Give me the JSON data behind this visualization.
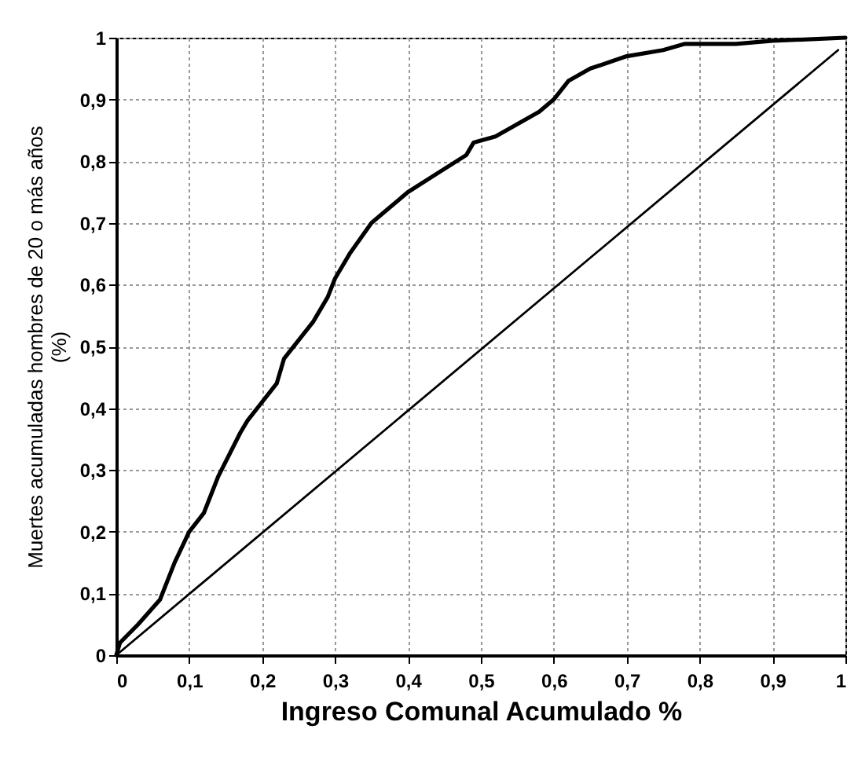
{
  "chart_data": {
    "type": "line",
    "xlabel": "Ingreso Comunal Acumulado %",
    "ylabel": "Muertes acumuladas hombres de 20 o más años (%)",
    "xlim": [
      0,
      1
    ],
    "ylim": [
      0,
      1
    ],
    "xticks": [
      0,
      {
        "value": 0.1,
        "label": "0,1"
      },
      {
        "value": 0.2,
        "label": "0,2"
      },
      {
        "value": 0.3,
        "label": "0,3"
      },
      {
        "value": 0.4,
        "label": "0,4"
      },
      {
        "value": 0.5,
        "label": "0,5"
      },
      {
        "value": 0.6,
        "label": "0,6"
      },
      {
        "value": 0.7,
        "label": "0,7"
      },
      {
        "value": 0.8,
        "label": "0,8"
      },
      {
        "value": 0.9,
        "label": "0,9"
      },
      1
    ],
    "yticks": [
      0,
      {
        "value": 0.1,
        "label": "0,1"
      },
      {
        "value": 0.2,
        "label": "0,2"
      },
      {
        "value": 0.3,
        "label": "0,3"
      },
      {
        "value": 0.4,
        "label": "0,4"
      },
      {
        "value": 0.5,
        "label": "0,5"
      },
      {
        "value": 0.6,
        "label": "0,6"
      },
      {
        "value": 0.7,
        "label": "0,7"
      },
      {
        "value": 0.8,
        "label": "0,8"
      },
      {
        "value": 0.9,
        "label": "0,9"
      },
      1
    ],
    "grid": true,
    "line_style": "solid",
    "marker": "none",
    "series": [
      {
        "color": "#000000",
        "x": [
          0,
          0.005,
          0.03,
          0.06,
          0.08,
          0.1,
          0.12,
          0.14,
          0.17,
          0.18,
          0.2,
          0.22,
          0.23,
          0.25,
          0.27,
          0.29,
          0.3,
          0.32,
          0.35,
          0.37,
          0.4,
          0.44,
          0.48,
          0.49,
          0.52,
          0.55,
          0.58,
          0.6,
          0.62,
          0.65,
          0.7,
          0.75,
          0.78,
          0.85,
          0.9,
          1
        ],
        "values": [
          0,
          0.02,
          0.05,
          0.09,
          0.15,
          0.2,
          0.23,
          0.29,
          0.36,
          0.38,
          0.41,
          0.44,
          0.48,
          0.51,
          0.54,
          0.58,
          0.61,
          0.65,
          0.7,
          0.72,
          0.75,
          0.78,
          0.81,
          0.83,
          0.84,
          0.86,
          0.88,
          0.9,
          0.93,
          0.95,
          0.97,
          0.98,
          0.99,
          0.99,
          0.995,
          1
        ]
      },
      {
        "color": "#000000",
        "x": [
          0,
          0.99
        ],
        "values": [
          0,
          0.98
        ]
      }
    ]
  }
}
